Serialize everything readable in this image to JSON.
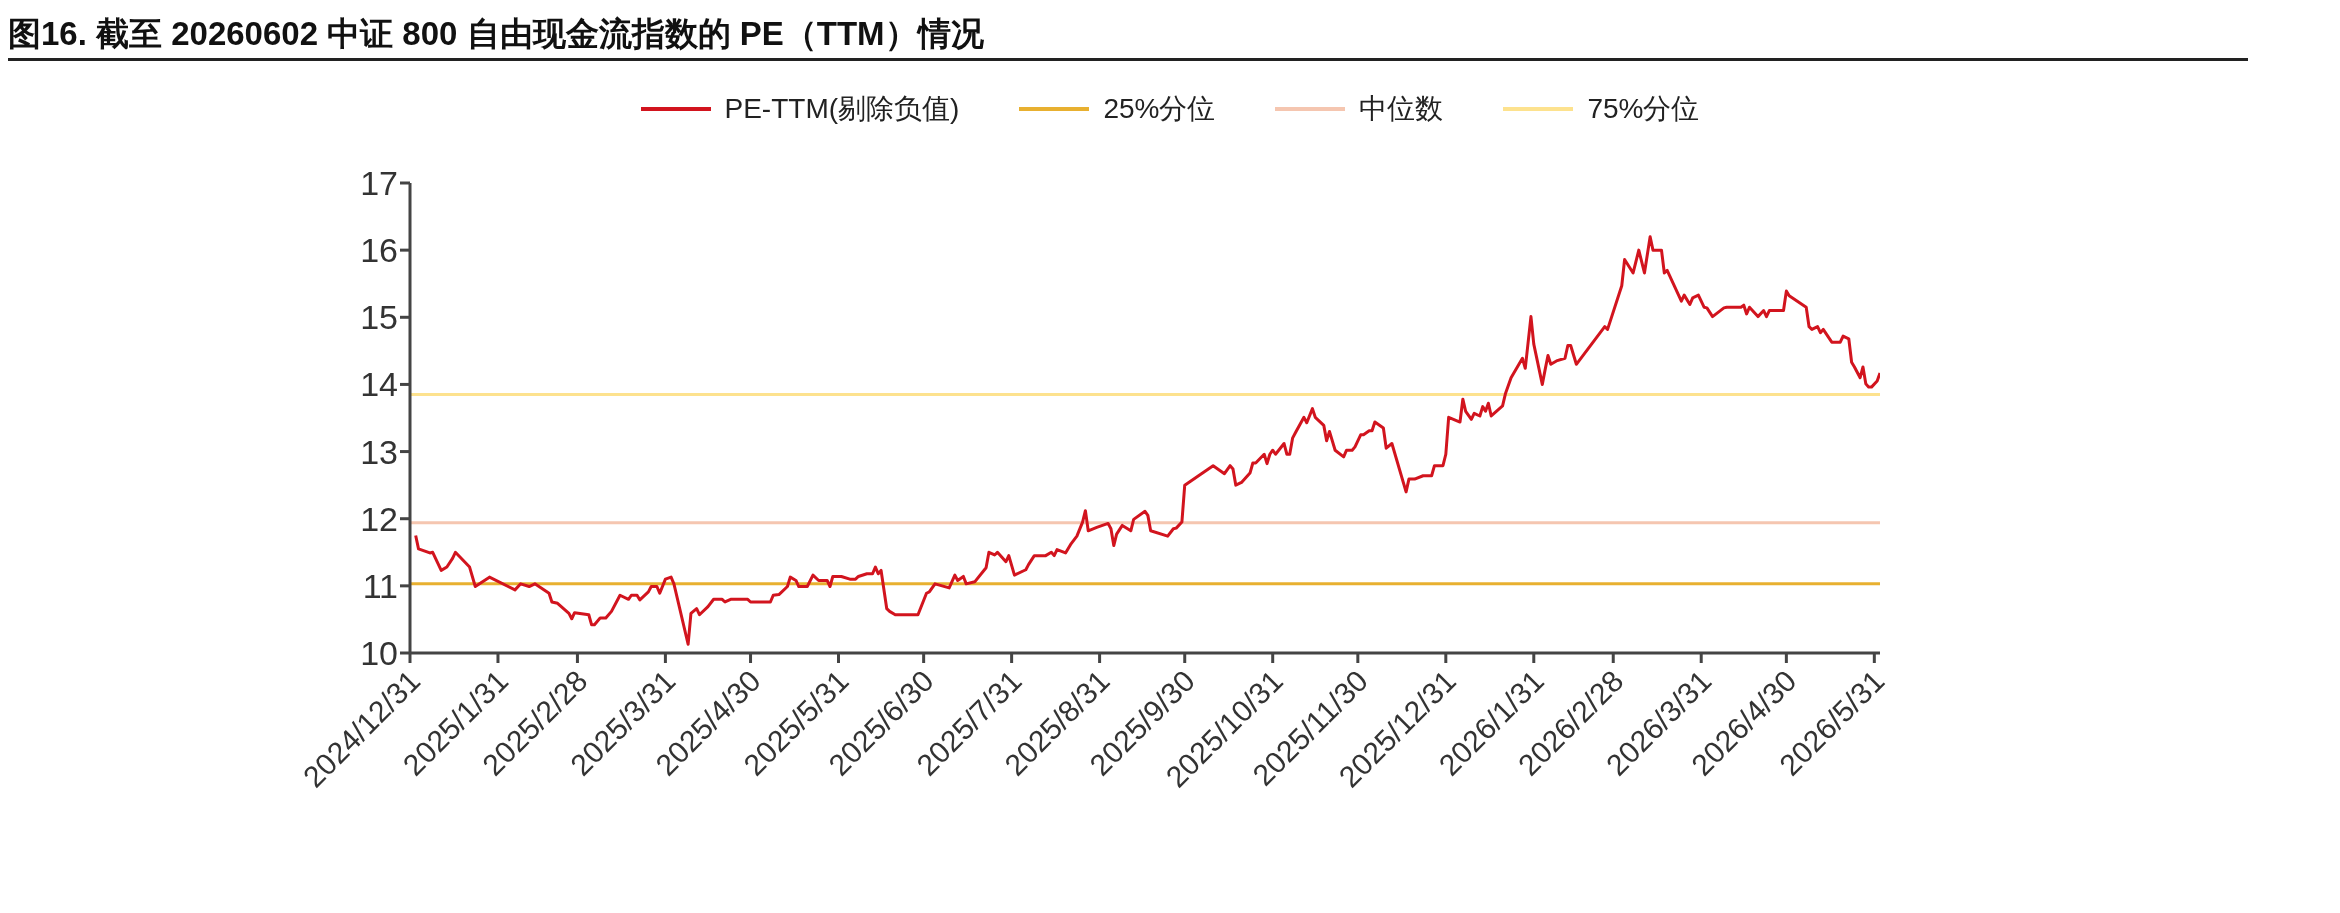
{
  "chart_data": {
    "type": "line",
    "title": "图16. 截至 20260602 中证 800 自由现金流指数的 PE（TTM）情况",
    "ylim": [
      10,
      17
    ],
    "yticks": [
      10,
      11,
      12,
      13,
      14,
      15,
      16,
      17
    ],
    "xlim": [
      "2024-12-31",
      "2026-06-02"
    ],
    "xticks": [
      {
        "value": "2024-12-31",
        "label": "2024/12/31"
      },
      {
        "value": "2025-01-31",
        "label": "2025/1/31"
      },
      {
        "value": "2025-02-28",
        "label": "2025/2/28"
      },
      {
        "value": "2025-03-31",
        "label": "2025/3/31"
      },
      {
        "value": "2025-04-30",
        "label": "2025/4/30"
      },
      {
        "value": "2025-05-31",
        "label": "2025/5/31"
      },
      {
        "value": "2025-06-30",
        "label": "2025/6/30"
      },
      {
        "value": "2025-07-31",
        "label": "2025/7/31"
      },
      {
        "value": "2025-08-31",
        "label": "2025/8/31"
      },
      {
        "value": "2025-09-30",
        "label": "2025/9/30"
      },
      {
        "value": "2025-10-31",
        "label": "2025/10/31"
      },
      {
        "value": "2025-11-30",
        "label": "2025/11/30"
      },
      {
        "value": "2025-12-31",
        "label": "2025/12/31"
      },
      {
        "value": "2026-01-31",
        "label": "2026/1/31"
      },
      {
        "value": "2026-02-28",
        "label": "2026/2/28"
      },
      {
        "value": "2026-03-31",
        "label": "2026/3/31"
      },
      {
        "value": "2026-04-30",
        "label": "2026/4/30"
      },
      {
        "value": "2026-05-31",
        "label": "2026/5/31"
      }
    ],
    "legend": "top",
    "grid": false,
    "marker": "none",
    "line_style": "solid",
    "ref_lines": [
      {
        "axis": "y",
        "value": 11.03,
        "label": "25%分位",
        "color": "#e8b030"
      },
      {
        "axis": "y",
        "value": 11.94,
        "label": "中位数",
        "color": "#f5c6b0"
      },
      {
        "axis": "y",
        "value": 13.85,
        "label": "75%分位",
        "color": "#fde28e"
      }
    ],
    "series": [
      {
        "name": "PE-TTM(剔除负值)",
        "color": "#d2141e",
        "x": [
          "2025-01-02",
          "2025-01-03",
          "2025-01-07",
          "2025-01-08",
          "2025-01-11",
          "2025-01-13",
          "2025-01-15",
          "2025-01-16",
          "2025-01-21",
          "2025-01-23",
          "2025-01-28",
          "2025-02-06",
          "2025-02-08",
          "2025-02-11",
          "2025-02-13",
          "2025-02-18",
          "2025-02-19",
          "2025-02-21",
          "2025-02-25",
          "2025-02-26",
          "2025-02-27",
          "2025-03-04",
          "2025-03-05",
          "2025-03-06",
          "2025-03-08",
          "2025-03-10",
          "2025-03-12",
          "2025-03-15",
          "2025-03-18",
          "2025-03-19",
          "2025-03-21",
          "2025-03-22",
          "2025-03-25",
          "2025-03-26",
          "2025-03-28",
          "2025-03-29",
          "2025-03-31",
          "2025-04-02",
          "2025-04-03",
          "2025-04-08",
          "2025-04-09",
          "2025-04-11",
          "2025-04-12",
          "2025-04-15",
          "2025-04-17",
          "2025-04-20",
          "2025-04-21",
          "2025-04-23",
          "2025-04-29",
          "2025-04-30",
          "2025-05-07",
          "2025-05-08",
          "2025-05-10",
          "2025-05-13",
          "2025-05-14",
          "2025-05-16",
          "2025-05-17",
          "2025-05-20",
          "2025-05-22",
          "2025-05-24",
          "2025-05-27",
          "2025-05-28",
          "2025-05-29",
          "2025-06-01",
          "2025-06-04",
          "2025-06-06",
          "2025-06-07",
          "2025-06-10",
          "2025-06-12",
          "2025-06-13",
          "2025-06-14",
          "2025-06-15",
          "2025-06-17",
          "2025-06-18",
          "2025-06-20",
          "2025-06-28",
          "2025-07-01",
          "2025-07-02",
          "2025-07-04",
          "2025-07-09",
          "2025-07-11",
          "2025-07-12",
          "2025-07-14",
          "2025-07-15",
          "2025-07-18",
          "2025-07-22",
          "2025-07-23",
          "2025-07-25",
          "2025-07-26",
          "2025-07-29",
          "2025-07-30",
          "2025-08-01",
          "2025-08-05",
          "2025-08-06",
          "2025-08-08",
          "2025-08-12",
          "2025-08-14",
          "2025-08-15",
          "2025-08-16",
          "2025-08-19",
          "2025-08-21",
          "2025-08-23",
          "2025-08-25",
          "2025-08-26",
          "2025-08-27",
          "2025-08-30",
          "2025-09-03",
          "2025-09-04",
          "2025-09-05",
          "2025-09-06",
          "2025-09-08",
          "2025-09-11",
          "2025-09-12",
          "2025-09-16",
          "2025-09-17",
          "2025-09-18",
          "2025-09-24",
          "2025-09-26",
          "2025-09-27",
          "2025-09-29",
          "2025-09-30",
          "2025-10-10",
          "2025-10-14",
          "2025-10-16",
          "2025-10-17",
          "2025-10-18",
          "2025-10-20",
          "2025-10-23",
          "2025-10-24",
          "2025-10-25",
          "2025-10-28",
          "2025-10-29",
          "2025-10-30",
          "2025-10-31",
          "2025-11-01",
          "2025-11-04",
          "2025-11-05",
          "2025-11-06",
          "2025-11-07",
          "2025-11-08",
          "2025-11-11",
          "2025-11-12",
          "2025-11-14",
          "2025-11-15",
          "2025-11-18",
          "2025-11-19",
          "2025-11-20",
          "2025-11-22",
          "2025-11-25",
          "2025-11-26",
          "2025-11-28",
          "2025-11-29",
          "2025-12-01",
          "2025-12-02",
          "2025-12-04",
          "2025-12-05",
          "2025-12-06",
          "2025-12-09",
          "2025-12-10",
          "2025-12-12",
          "2025-12-17",
          "2025-12-18",
          "2025-12-20",
          "2025-12-23",
          "2025-12-26",
          "2025-12-27",
          "2025-12-30",
          "2025-12-31",
          "2026-01-01",
          "2026-01-05",
          "2026-01-06",
          "2026-01-07",
          "2026-01-09",
          "2026-01-10",
          "2026-01-12",
          "2026-01-13",
          "2026-01-14",
          "2026-01-15",
          "2026-01-16",
          "2026-01-20",
          "2026-01-21",
          "2026-01-23",
          "2026-01-27",
          "2026-01-28",
          "2026-01-30",
          "2026-01-31",
          "2026-02-03",
          "2026-02-04",
          "2026-02-05",
          "2026-02-06",
          "2026-02-08",
          "2026-02-11",
          "2026-02-12",
          "2026-02-13",
          "2026-02-15",
          "2026-02-25",
          "2026-02-26",
          "2026-03-03",
          "2026-03-04",
          "2026-03-07",
          "2026-03-09",
          "2026-03-11",
          "2026-03-13",
          "2026-03-14",
          "2026-03-17",
          "2026-03-18",
          "2026-03-19",
          "2026-03-24",
          "2026-03-25",
          "2026-03-27",
          "2026-03-28",
          "2026-03-30",
          "2026-04-01",
          "2026-04-02",
          "2026-04-04",
          "2026-04-08",
          "2026-04-09",
          "2026-04-14",
          "2026-04-15",
          "2026-04-16",
          "2026-04-17",
          "2026-04-20",
          "2026-04-22",
          "2026-04-23",
          "2026-04-24",
          "2026-04-29",
          "2026-04-30",
          "2026-05-01",
          "2026-05-07",
          "2026-05-08",
          "2026-05-09",
          "2026-05-11",
          "2026-05-12",
          "2026-05-13",
          "2026-05-16",
          "2026-05-19",
          "2026-05-20",
          "2026-05-22",
          "2026-05-23",
          "2026-05-24",
          "2026-05-26",
          "2026-05-27",
          "2026-05-28",
          "2026-05-29",
          "2026-05-30",
          "2026-06-01",
          "2026-06-02"
        ],
        "values": [
          11.75,
          11.55,
          11.49,
          11.5,
          11.23,
          11.28,
          11.41,
          11.5,
          11.28,
          10.99,
          11.13,
          10.94,
          11.03,
          10.99,
          11.03,
          10.89,
          10.76,
          10.74,
          10.59,
          10.51,
          10.6,
          10.57,
          10.42,
          10.42,
          10.52,
          10.52,
          10.62,
          10.86,
          10.8,
          10.86,
          10.86,
          10.79,
          10.91,
          10.99,
          10.99,
          10.89,
          11.1,
          11.13,
          11.03,
          10.13,
          10.59,
          10.66,
          10.57,
          10.69,
          10.8,
          10.8,
          10.76,
          10.8,
          10.8,
          10.76,
          10.76,
          10.86,
          10.87,
          10.99,
          11.13,
          11.08,
          10.99,
          10.99,
          11.16,
          11.08,
          11.08,
          10.99,
          11.14,
          11.14,
          11.1,
          11.1,
          11.14,
          11.18,
          11.18,
          11.28,
          11.18,
          11.23,
          10.66,
          10.62,
          10.57,
          10.57,
          10.89,
          10.91,
          11.03,
          10.97,
          11.16,
          11.08,
          11.14,
          11.03,
          11.06,
          11.27,
          11.5,
          11.46,
          11.5,
          11.36,
          11.45,
          11.16,
          11.24,
          11.32,
          11.45,
          11.45,
          11.5,
          11.45,
          11.54,
          11.49,
          11.63,
          11.74,
          11.95,
          12.12,
          11.82,
          11.87,
          11.93,
          11.85,
          11.6,
          11.77,
          11.9,
          11.82,
          11.99,
          12.11,
          12.05,
          11.82,
          11.74,
          11.85,
          11.86,
          11.95,
          12.5,
          12.79,
          12.67,
          12.79,
          12.74,
          12.5,
          12.54,
          12.68,
          12.83,
          12.83,
          12.96,
          12.82,
          12.96,
          13.02,
          12.96,
          13.12,
          12.96,
          12.96,
          13.2,
          13.28,
          13.51,
          13.43,
          13.64,
          13.51,
          13.39,
          13.16,
          13.3,
          13.02,
          12.92,
          13.02,
          13.02,
          13.07,
          13.25,
          13.25,
          13.31,
          13.31,
          13.44,
          13.35,
          13.05,
          13.12,
          12.4,
          12.59,
          12.59,
          12.64,
          12.64,
          12.79,
          12.79,
          12.96,
          13.51,
          13.44,
          13.78,
          13.6,
          13.48,
          13.57,
          13.53,
          13.67,
          13.6,
          13.72,
          13.53,
          13.68,
          13.86,
          14.1,
          14.39,
          14.24,
          15.01,
          14.6,
          14.0,
          14.22,
          14.43,
          14.3,
          14.35,
          14.39,
          14.58,
          14.58,
          14.3,
          14.86,
          14.82,
          15.47,
          15.86,
          15.66,
          16.0,
          15.66,
          16.2,
          16.0,
          16.0,
          15.66,
          15.7,
          15.24,
          15.33,
          15.19,
          15.29,
          15.33,
          15.15,
          15.14,
          15.01,
          15.14,
          15.15,
          15.15,
          15.18,
          15.05,
          15.15,
          15.01,
          15.1,
          15.01,
          15.1,
          15.1,
          15.39,
          15.32,
          15.15,
          14.86,
          14.82,
          14.86,
          14.77,
          14.82,
          14.63,
          14.63,
          14.72,
          14.68,
          14.33,
          14.26,
          14.1,
          14.26,
          14.01,
          13.96,
          13.96,
          14.05,
          14.17
        ]
      }
    ]
  }
}
